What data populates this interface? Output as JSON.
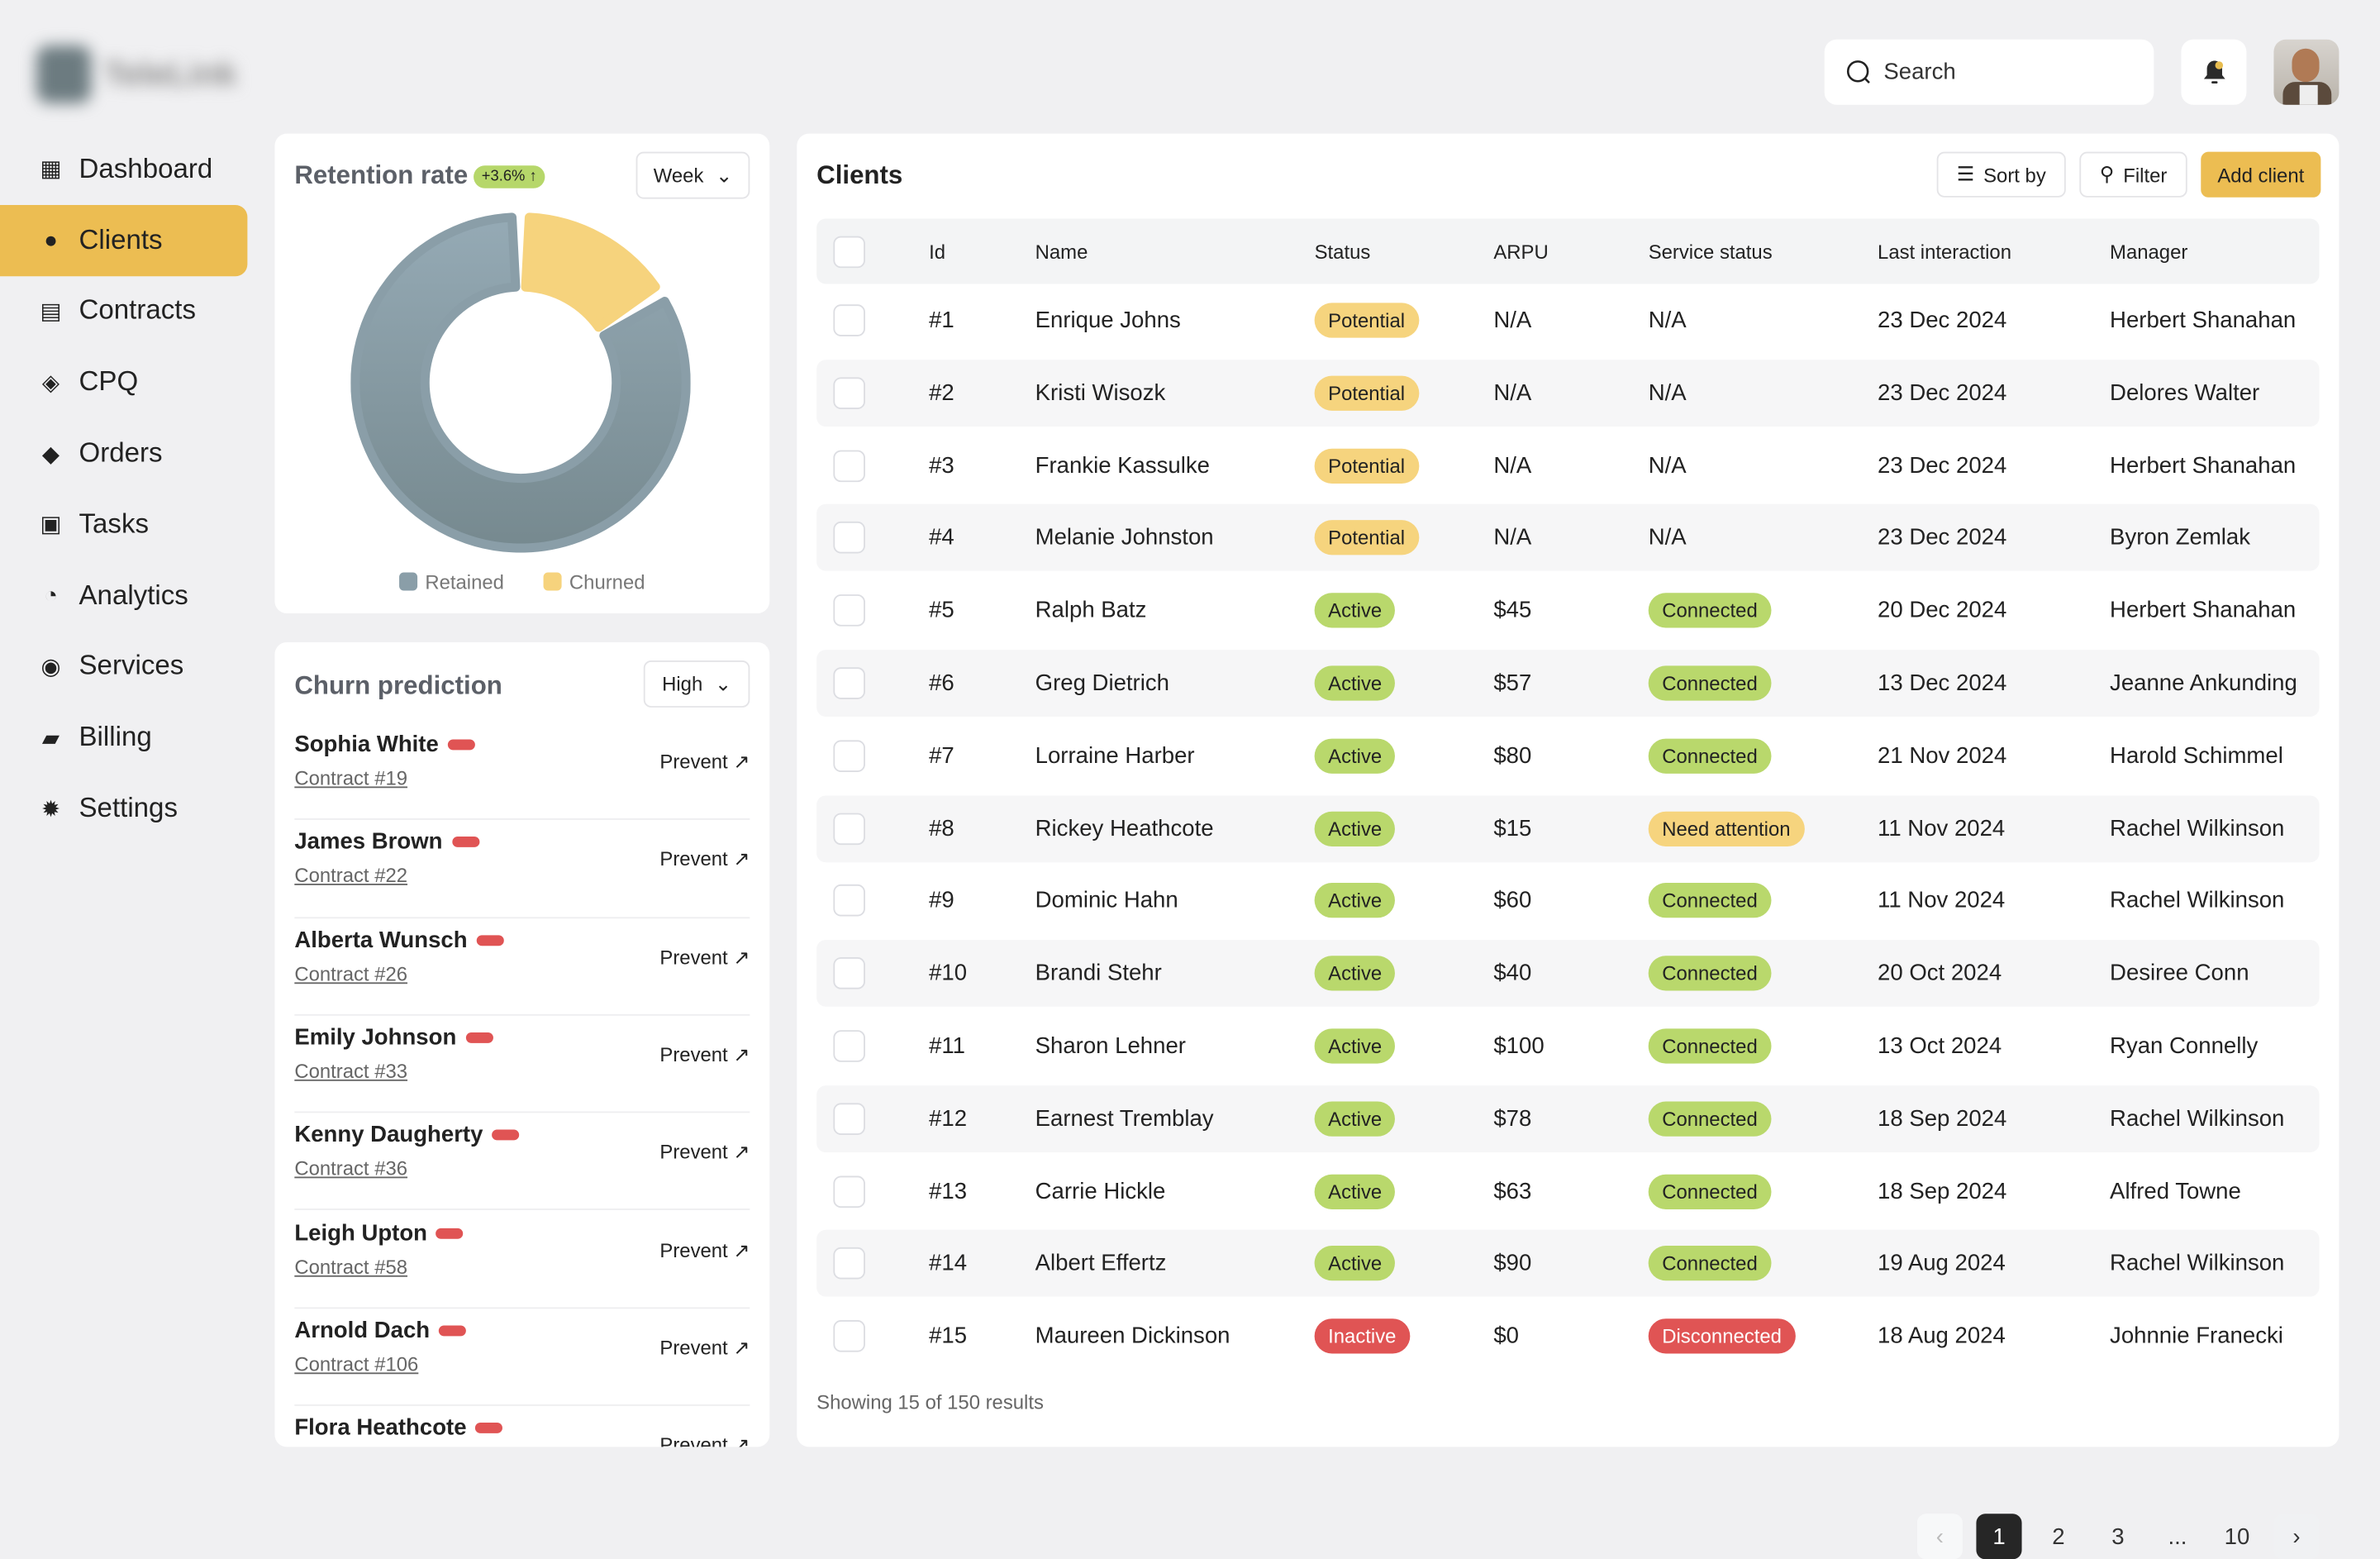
{
  "app": {
    "logo_text": "TeleLink"
  },
  "sidebar": {
    "items": [
      {
        "label": "Dashboard",
        "icon": "dashboard-icon"
      },
      {
        "label": "Clients",
        "icon": "user-icon",
        "active": true
      },
      {
        "label": "Contracts",
        "icon": "document-icon"
      },
      {
        "label": "CPQ",
        "icon": "cpq-icon"
      },
      {
        "label": "Orders",
        "icon": "box-icon"
      },
      {
        "label": "Tasks",
        "icon": "task-icon"
      },
      {
        "label": "Analytics",
        "icon": "pie-chart-icon"
      },
      {
        "label": "Services",
        "icon": "service-icon"
      },
      {
        "label": "Billing",
        "icon": "wallet-icon"
      },
      {
        "label": "Settings",
        "icon": "gear-icon"
      }
    ]
  },
  "header": {
    "search_placeholder": "Search",
    "notification_dot_color": "#e8bd50"
  },
  "retention": {
    "title": "Retention rate",
    "change": "+3.6% ↑",
    "period": "Week"
  },
  "chart_data": {
    "type": "pie",
    "variant": "donut",
    "categories": [
      "Retained",
      "Churned"
    ],
    "values": [
      84,
      16
    ],
    "colors": [
      "#8a9ea8",
      "#f6d37d"
    ],
    "legend": "bottom"
  },
  "churn": {
    "title": "Churn prediction",
    "level": "High",
    "action_label": "Prevent ↗",
    "items": [
      {
        "name": "Sophia White",
        "contract": "Contract #19"
      },
      {
        "name": "James Brown",
        "contract": "Contract #22"
      },
      {
        "name": "Alberta Wunsch",
        "contract": "Contract #26"
      },
      {
        "name": "Emily Johnson",
        "contract": "Contract #33"
      },
      {
        "name": "Kenny Daugherty",
        "contract": "Contract #36"
      },
      {
        "name": "Leigh Upton",
        "contract": "Contract #58"
      },
      {
        "name": "Arnold Dach",
        "contract": "Contract #106"
      },
      {
        "name": "Flora Heathcote",
        "contract": ""
      }
    ]
  },
  "clients": {
    "title": "Clients",
    "sort_label": "Sort by",
    "filter_label": "Filter",
    "add_label": "Add client",
    "columns": [
      "Id",
      "Name",
      "Status",
      "ARPU",
      "Service status",
      "Last interaction",
      "Manager"
    ],
    "rows": [
      [
        "#1",
        "Enrique Johns",
        "Potential",
        "N/A",
        "N/A",
        "23 Dec 2024",
        "Herbert Shanahan"
      ],
      [
        "#2",
        "Kristi Wisozk",
        "Potential",
        "N/A",
        "N/A",
        "23 Dec 2024",
        "Delores Walter"
      ],
      [
        "#3",
        "Frankie Kassulke",
        "Potential",
        "N/A",
        "N/A",
        "23 Dec 2024",
        "Herbert Shanahan"
      ],
      [
        "#4",
        "Melanie Johnston",
        "Potential",
        "N/A",
        "N/A",
        "23 Dec 2024",
        "Byron Zemlak"
      ],
      [
        "#5",
        "Ralph Batz",
        "Active",
        "$45",
        "Connected",
        "20 Dec 2024",
        "Herbert Shanahan"
      ],
      [
        "#6",
        "Greg Dietrich",
        "Active",
        "$57",
        "Connected",
        "13 Dec 2024",
        "Jeanne Ankunding"
      ],
      [
        "#7",
        "Lorraine Harber",
        "Active",
        "$80",
        "Connected",
        "21 Nov 2024",
        "Harold Schimmel"
      ],
      [
        "#8",
        "Rickey Heathcote",
        "Active",
        "$15",
        "Need attention",
        "11 Nov 2024",
        "Rachel Wilkinson"
      ],
      [
        "#9",
        "Dominic Hahn",
        "Active",
        "$60",
        "Connected",
        "11 Nov 2024",
        "Rachel Wilkinson"
      ],
      [
        "#10",
        "Brandi Stehr",
        "Active",
        "$40",
        "Connected",
        "20 Oct 2024",
        "Desiree Conn"
      ],
      [
        "#11",
        "Sharon Lehner",
        "Active",
        "$100",
        "Connected",
        "13 Oct 2024",
        "Ryan Connelly"
      ],
      [
        "#12",
        "Earnest Tremblay",
        "Active",
        "$78",
        "Connected",
        "18 Sep 2024",
        "Rachel Wilkinson"
      ],
      [
        "#13",
        "Carrie Hickle",
        "Active",
        "$63",
        "Connected",
        "18 Sep 2024",
        "Alfred Towne"
      ],
      [
        "#14",
        "Albert Effertz",
        "Active",
        "$90",
        "Connected",
        "19 Aug 2024",
        "Rachel Wilkinson"
      ],
      [
        "#15",
        "Maureen Dickinson",
        "Inactive",
        "$0",
        "Disconnected",
        "18 Aug 2024",
        "Johnnie Franecki"
      ]
    ],
    "badge_colors": {
      "Potential": "#f6d47e",
      "Active": "#b9d86c",
      "Inactive": "#e05454",
      "Connected": "#b9d86c",
      "Need attention": "#f6d47e",
      "Disconnected": "#e05454"
    },
    "footer": "Showing 15 of 150 results",
    "pages": [
      "1",
      "2",
      "3",
      "...",
      "10"
    ],
    "current_page": "1"
  }
}
